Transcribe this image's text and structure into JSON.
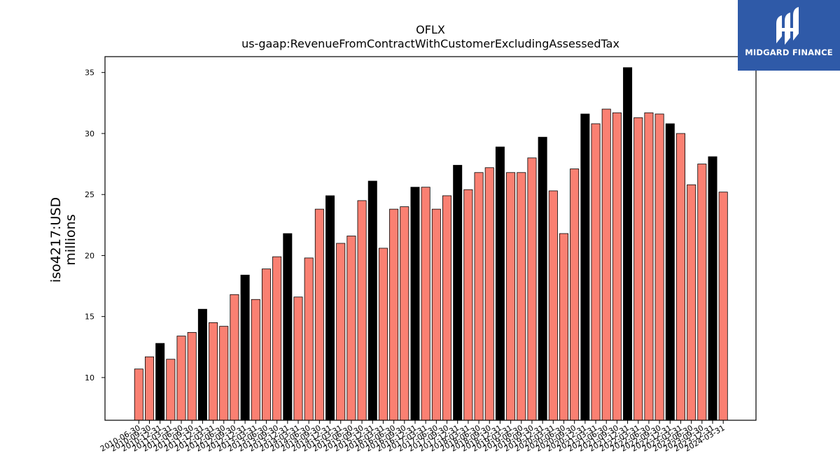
{
  "chart_data": {
    "type": "bar",
    "title": "OFLX",
    "subtitle": "us-gaap:RevenueFromContractWithCustomerExcludingAssessedTax",
    "ylabel_line1": "iso4217:USD",
    "ylabel_line2": "millions",
    "xlabel": "",
    "ylim": [
      6.5,
      36.3
    ],
    "yticks": [
      10,
      15,
      20,
      25,
      30,
      35
    ],
    "grid": false,
    "colors": {
      "quarter": "#fa8072",
      "fiscal_year_end": "#000000",
      "edge": "#000000"
    },
    "categories": [
      "2010-06-30",
      "2010-09-30",
      "2010-12-31",
      "2011-03-31",
      "2011-06-30",
      "2011-09-30",
      "2011-12-31",
      "2012-03-31",
      "2012-06-30",
      "2012-09-30",
      "2012-12-31",
      "2013-03-31",
      "2013-06-30",
      "2013-09-30",
      "2013-12-31",
      "2014-03-31",
      "2014-06-30",
      "2014-09-30",
      "2014-12-31",
      "2015-03-31",
      "2015-06-30",
      "2015-09-30",
      "2015-12-31",
      "2016-03-31",
      "2016-06-30",
      "2016-09-30",
      "2016-12-31",
      "2017-03-31",
      "2017-06-30",
      "2017-09-30",
      "2017-12-31",
      "2018-03-31",
      "2018-06-30",
      "2018-09-30",
      "2018-12-31",
      "2019-03-31",
      "2019-06-30",
      "2019-09-30",
      "2019-12-31",
      "2020-03-31",
      "2020-06-30",
      "2020-09-30",
      "2020-12-31",
      "2021-03-31",
      "2021-06-30",
      "2021-09-30",
      "2021-12-31",
      "2022-03-31",
      "2022-06-30",
      "2022-09-30",
      "2022-12-31",
      "2023-03-31",
      "2023-06-30",
      "2023-09-30",
      "2023-12-31",
      "2024-03-31"
    ],
    "values": [
      10.7,
      11.7,
      12.8,
      11.5,
      13.4,
      13.7,
      15.6,
      14.5,
      14.2,
      16.8,
      18.4,
      16.4,
      18.9,
      19.9,
      21.8,
      16.6,
      19.8,
      23.8,
      24.9,
      21.0,
      21.6,
      24.5,
      26.1,
      20.6,
      23.8,
      24.0,
      25.6,
      25.6,
      23.8,
      24.9,
      27.4,
      25.4,
      26.8,
      27.2,
      28.9,
      26.8,
      26.8,
      28.0,
      29.7,
      25.3,
      21.8,
      27.1,
      31.6,
      30.8,
      32.0,
      31.7,
      35.4,
      31.3,
      31.7,
      31.6,
      30.8,
      30.0,
      25.8,
      27.5,
      28.1,
      25.2
    ],
    "fiscal_year_end_flags": [
      false,
      false,
      true,
      false,
      false,
      false,
      true,
      false,
      false,
      false,
      true,
      false,
      false,
      false,
      true,
      false,
      false,
      false,
      true,
      false,
      false,
      false,
      true,
      false,
      false,
      false,
      true,
      false,
      false,
      false,
      true,
      false,
      false,
      false,
      true,
      false,
      false,
      false,
      true,
      false,
      false,
      false,
      true,
      false,
      false,
      false,
      true,
      false,
      false,
      false,
      true,
      false,
      false,
      false,
      true,
      false
    ]
  },
  "logo": {
    "text": "MIDGARD FINANCE",
    "bg": "#2f5aa8"
  }
}
